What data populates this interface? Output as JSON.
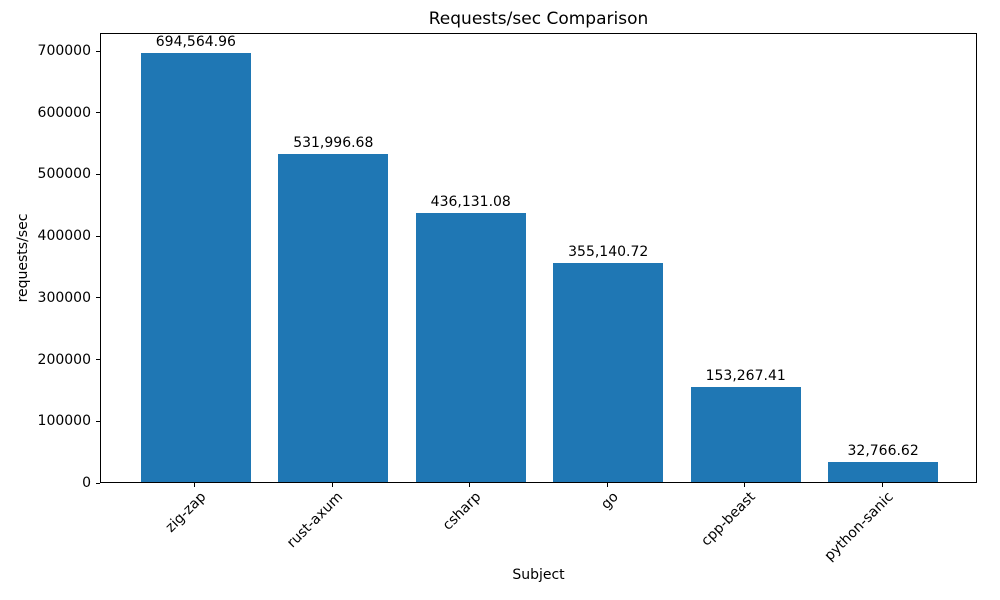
{
  "chart_data": {
    "type": "bar",
    "title": "Requests/sec Comparison",
    "xlabel": "Subject",
    "ylabel": "requests/sec",
    "categories": [
      "zig-zap",
      "rust-axum",
      "csharp",
      "go",
      "cpp-beast",
      "python-sanic"
    ],
    "values": [
      694564.96,
      531996.68,
      436131.08,
      355140.72,
      153267.41,
      32766.62
    ],
    "bar_labels": [
      "694,564.96",
      "531,996.68",
      "436,131.08",
      "355,140.72",
      "153,267.41",
      "32,766.62"
    ],
    "bar_color": "#1f77b4",
    "ylim": [
      0,
      729293
    ],
    "xlim": [
      -0.69,
      5.69
    ],
    "bar_width_units": 0.8,
    "yticks": [
      0,
      100000,
      200000,
      300000,
      400000,
      500000,
      600000,
      700000
    ],
    "x_tick_rotation_deg": 45,
    "grid": false,
    "legend_position": "none",
    "background_color": "#ffffff",
    "text_color": "#000000"
  }
}
